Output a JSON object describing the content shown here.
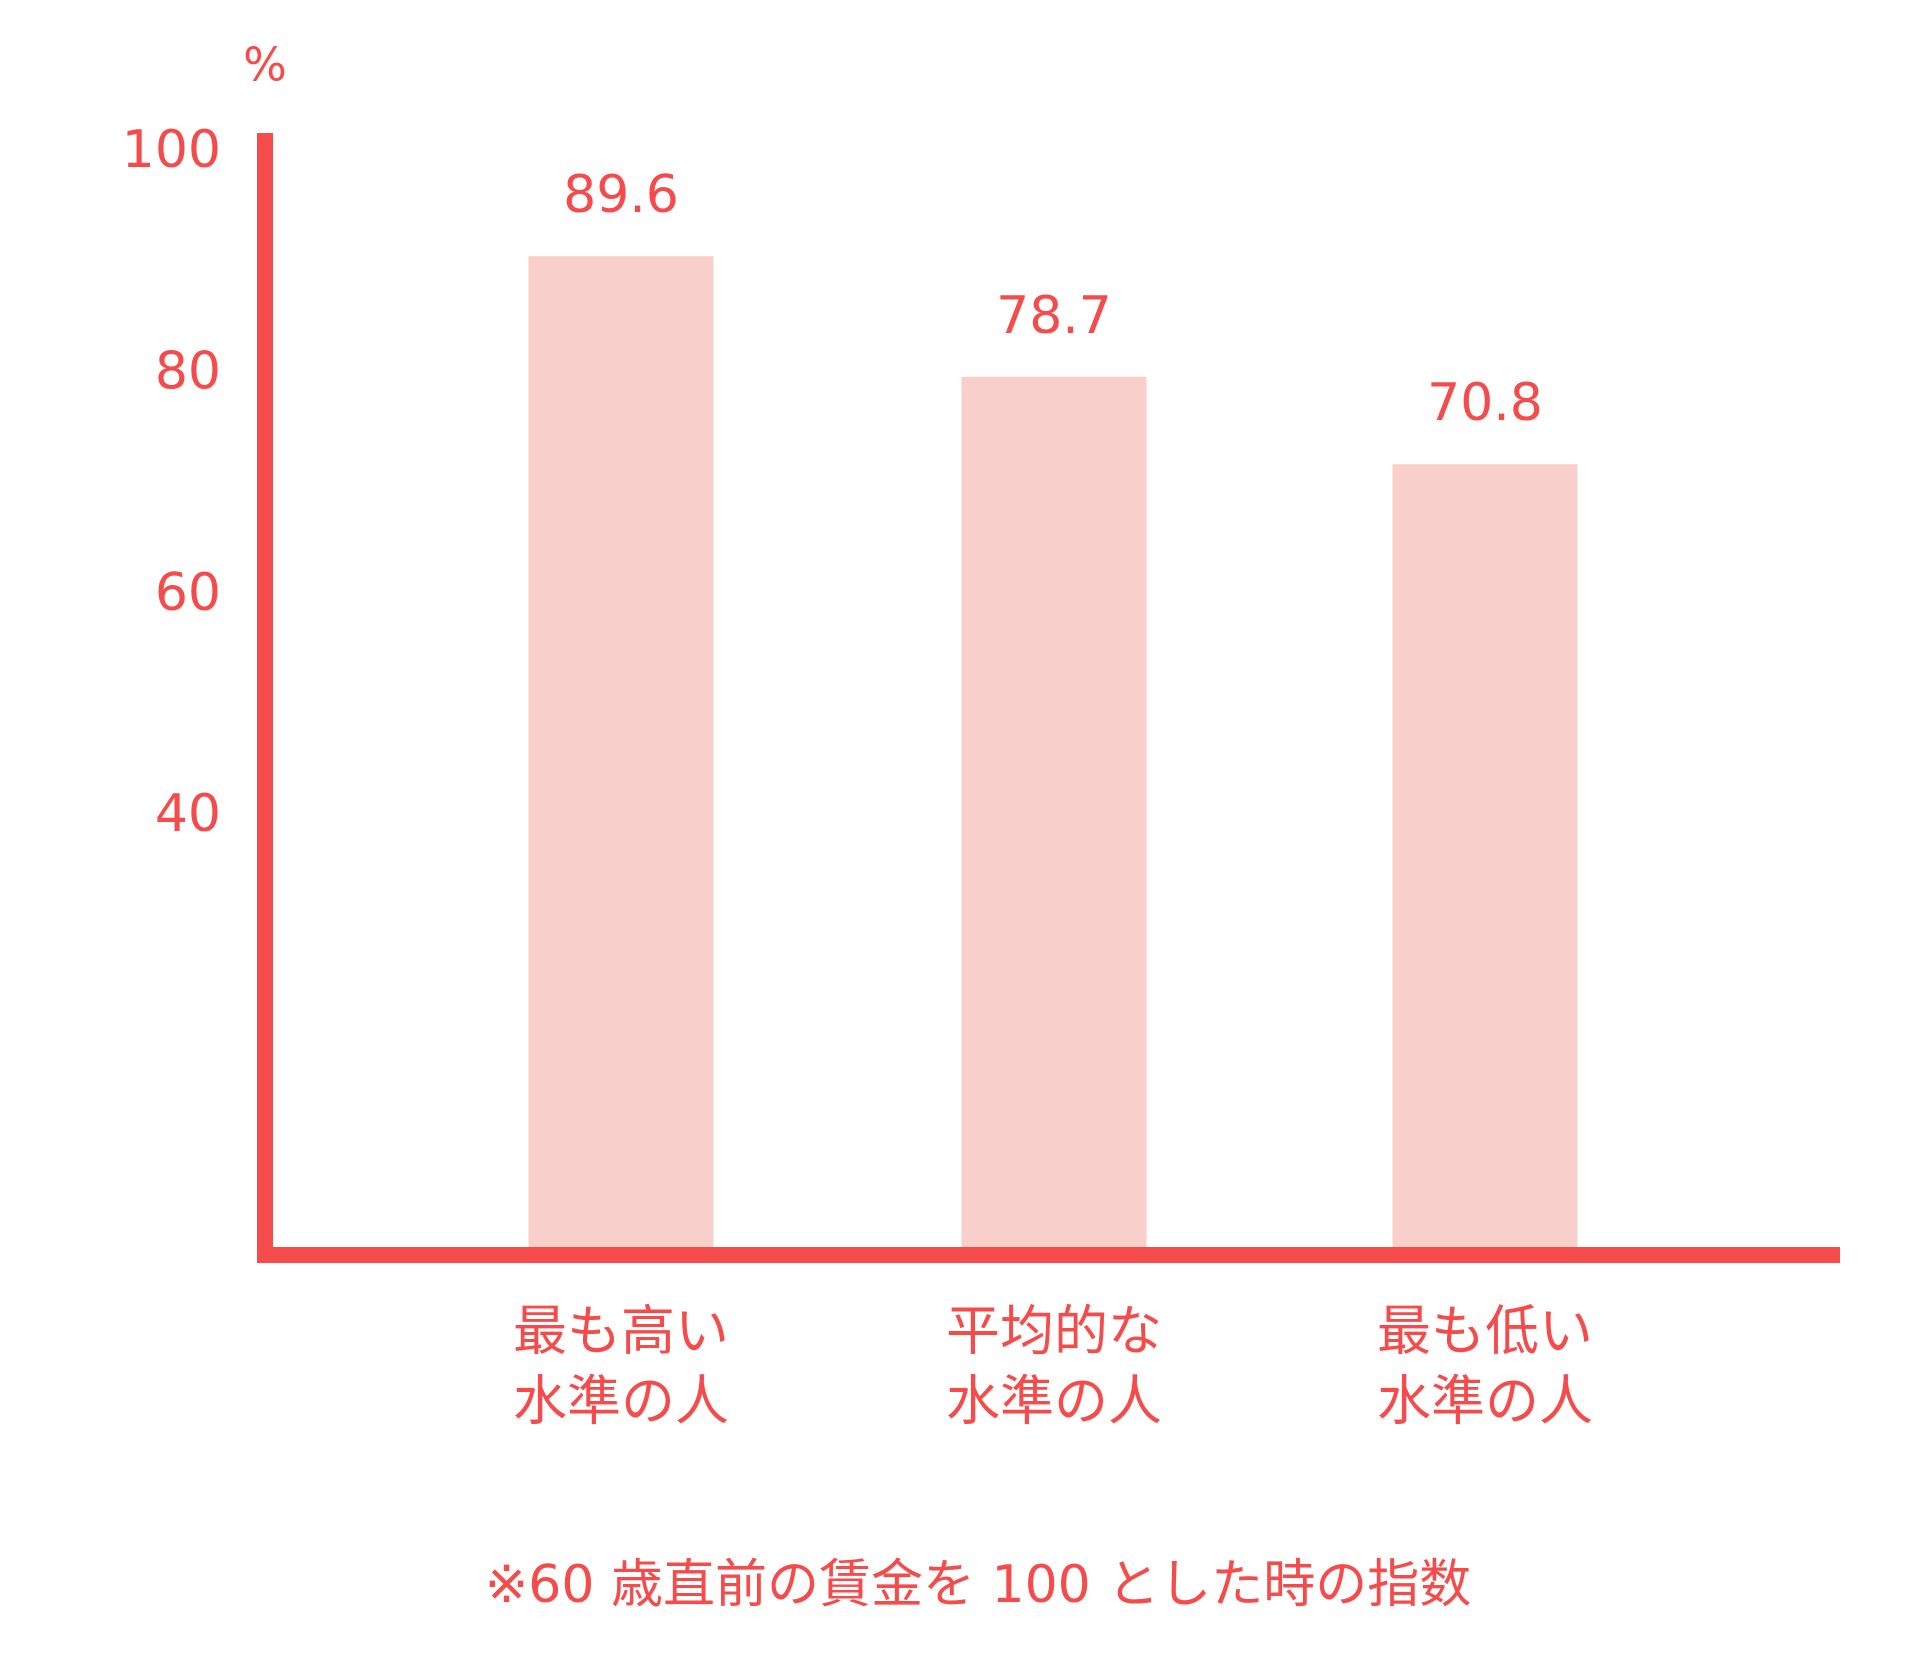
{
  "chart_data": {
    "type": "bar",
    "y_axis_label": "%",
    "categories": [
      [
        "最も高い",
        "水準の人"
      ],
      [
        "平均的な",
        "水準の人"
      ],
      [
        "最も低い",
        "水準の人"
      ]
    ],
    "values": [
      89.6,
      78.7,
      70.8
    ],
    "color": "#f9cfcc",
    "axis_color": "#f64b4b",
    "ylim": [
      0,
      100
    ],
    "yticks": [
      40,
      60,
      80,
      100
    ],
    "grid": false,
    "footnote": "※60 歳直前の賃金を 100 とした時の指数"
  }
}
